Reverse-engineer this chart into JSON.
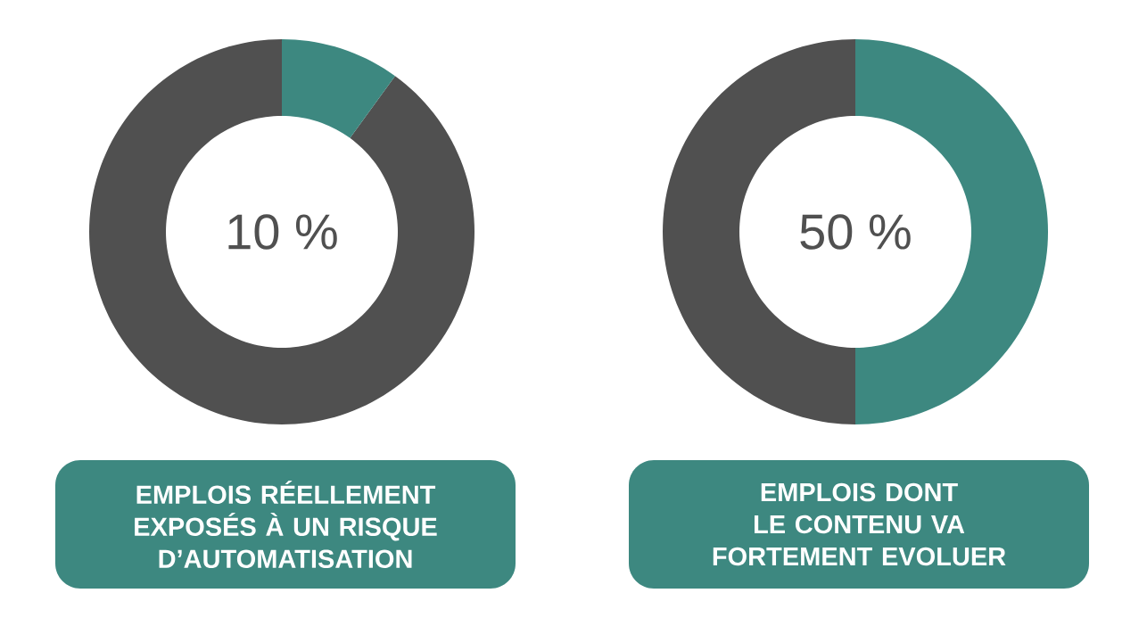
{
  "chart_data": [
    {
      "type": "donut",
      "title": "EMPLOIS RÉELLEMENT EXPOSÉS À UN RISQUE D’AUTOMATISATION",
      "categories": [
        null,
        null
      ],
      "values": [
        10,
        90
      ],
      "colors": [
        "#3d8880",
        "#505050"
      ],
      "annotations": [
        "10 %"
      ]
    },
    {
      "type": "donut",
      "title": "EMPLOIS DONT LE CONTENU VA FORTEMENT EVOLUER",
      "categories": [
        null,
        null
      ],
      "values": [
        50,
        50
      ],
      "colors": [
        "#3d8880",
        "#505050"
      ],
      "annotations": [
        "50 %"
      ]
    }
  ]
}
